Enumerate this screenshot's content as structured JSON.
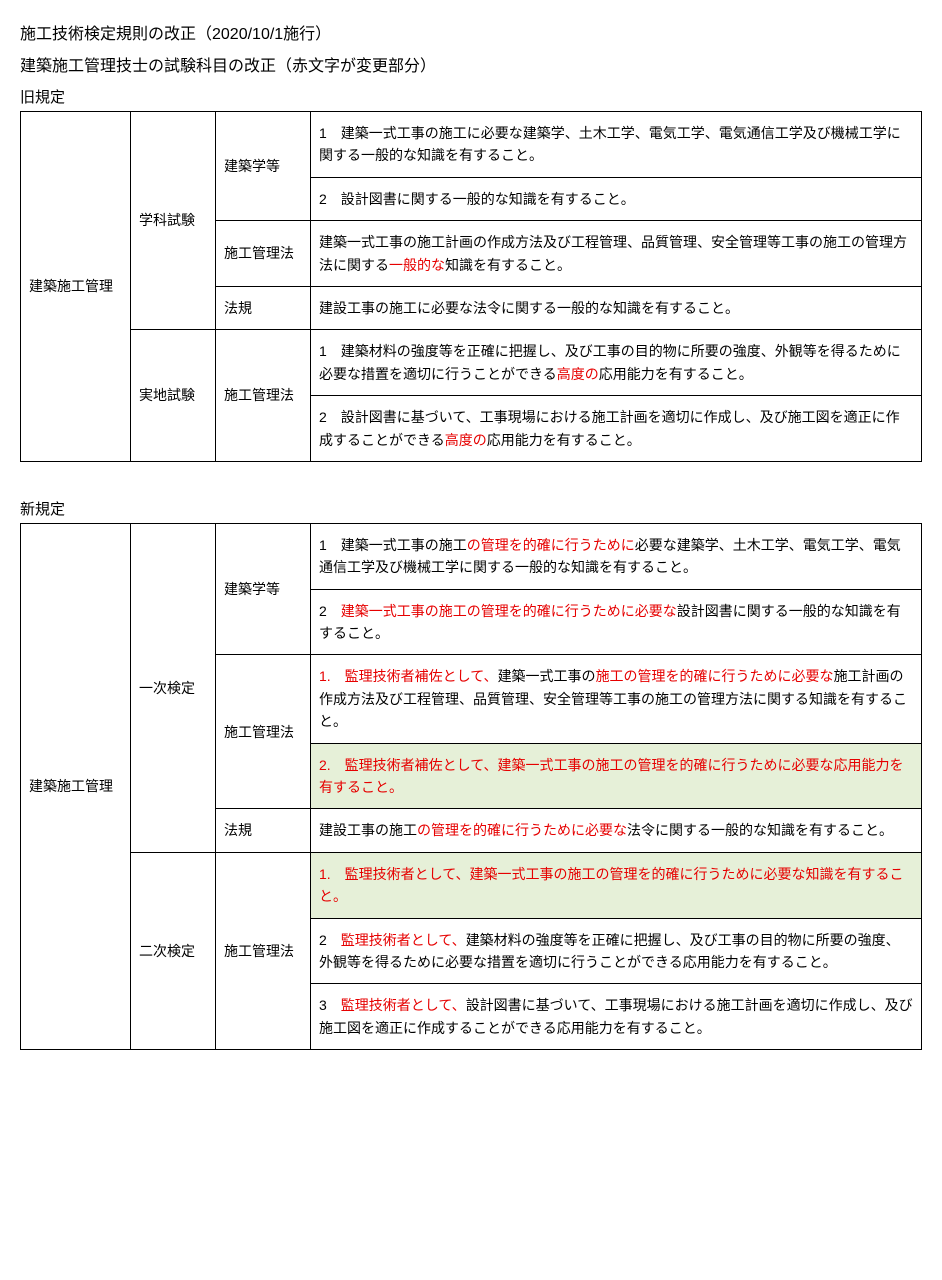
{
  "header": {
    "title": "施工技術検定規則の改正（2020/10/1施行）",
    "subtitle": "建築施工管理技士の試験科目の改正（赤文字が変更部分）"
  },
  "old": {
    "label": "旧規定",
    "col1": "建築施工管理",
    "exam1": "学科試験",
    "exam2": "実地試験",
    "subj1": "建築学等",
    "subj2": "施工管理法",
    "subj3": "法規",
    "subj4": "施工管理法",
    "r1": {
      "pre": "1　建築一式工事の施工に必要な建築学、土木工学、電気工学、電気通信工学及び機械工学に関する一般的な知識を有すること。"
    },
    "r2": {
      "pre": "2　設計図書に関する一般的な知識を有すること。"
    },
    "r3": {
      "pre": "建築一式工事の施工計画の作成方法及び工程管理、品質管理、安全管理等工事の施工の管理方法に関する",
      "red": "一般的な",
      "post": "知識を有すること。"
    },
    "r4": {
      "pre": "建設工事の施工に必要な法令に関する一般的な知識を有すること。"
    },
    "r5": {
      "pre": "1　建築材料の強度等を正確に把握し、及び工事の目的物に所要の強度、外観等を得るために必要な措置を適切に行うことができる",
      "red": "高度の",
      "post": "応用能力を有すること。"
    },
    "r6": {
      "pre": "2　設計図書に基づいて、工事現場における施工計画を適切に作成し、及び施工図を適正に作成することができる",
      "red": "高度の",
      "post": "応用能力を有すること。"
    }
  },
  "new": {
    "label": "新規定",
    "col1": "建築施工管理",
    "exam1": "一次検定",
    "exam2": "二次検定",
    "subj1": "建築学等",
    "subj2": "施工管理法",
    "subj3": "法規",
    "subj4": "施工管理法",
    "r1": {
      "p1": "1　建築一式工事の施工",
      "r1": "の管理を的確に行うために",
      "p2": "必要な建築学、土木工学、電気工学、電気通信工学及び機械工学に関する一般的な知識を有すること。"
    },
    "r2": {
      "p1": "2　",
      "r1": "建築一式工事の施工の管理を的確に行うために必要な",
      "p2": "設計図書に関する一般的な知識を有すること。"
    },
    "r3": {
      "r1": "1.　監理技術者補佐として、",
      "p1": "建築一式工事の",
      "r2": "施工の管理を的確に行うために必要な",
      "p2": "施工計画の作成方法及び工程管理、品質管理、安全管理等工事の施工の管理方法に関する知識を有すること。"
    },
    "r4": {
      "r1": "2.　監理技術者補佐として、建築一式工事の施工の管理を的確に行うために必要な応用能力を有すること。"
    },
    "r5": {
      "p1": "建設工事の施工",
      "r1": "の管理を的確に行うために必要な",
      "p2": "法令に関する一般的な知識を有すること。"
    },
    "r6": {
      "r1": "1.　監理技術者として、建築一式工事の施工の管理を的確に行うために必要な知識を有すること。"
    },
    "r7": {
      "p1": "2　",
      "r1": "監理技術者として、",
      "p2": "建築材料の強度等を正確に把握し、及び工事の目的物に所要の強度、外観等を得るために必要な措置を適切に行うことができる応用能力を有すること。"
    },
    "r8": {
      "p1": "3　",
      "r1": "監理技術者として、",
      "p2": "設計図書に基づいて、工事現場における施工計画を適切に作成し、及び施工図を適正に作成することができる応用能力を有すること。"
    }
  }
}
